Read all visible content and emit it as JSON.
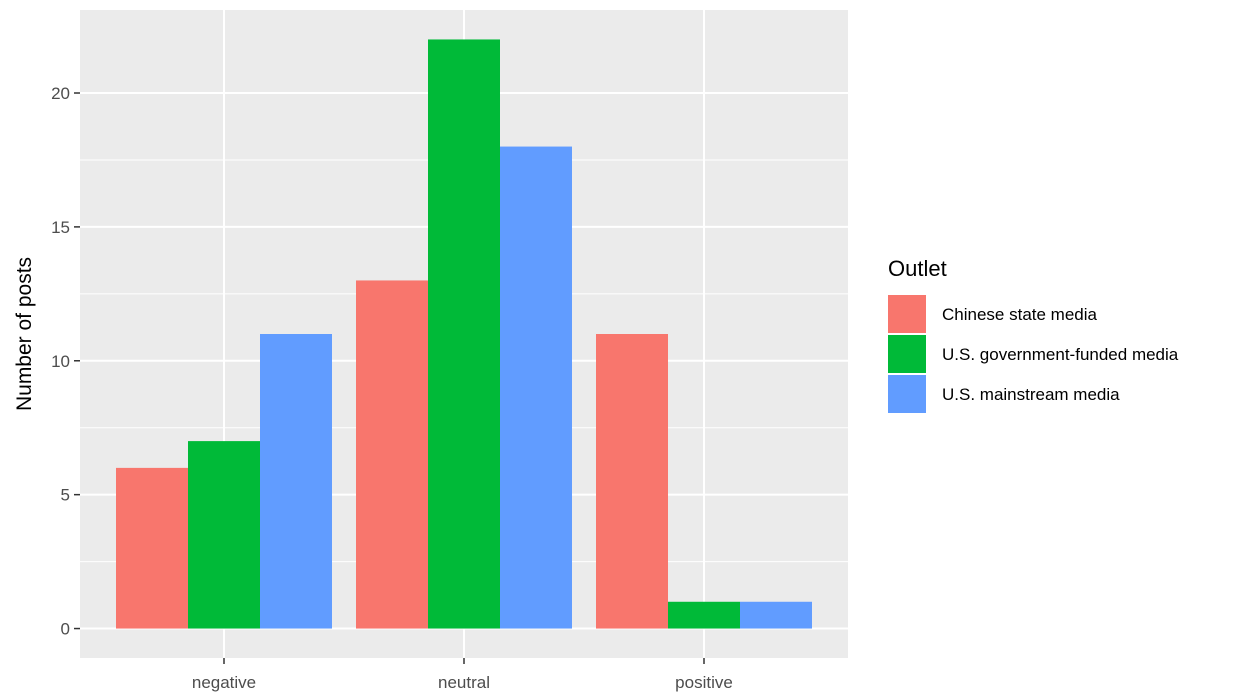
{
  "chart_data": {
    "type": "bar",
    "categories": [
      "negative",
      "neutral",
      "positive"
    ],
    "series": [
      {
        "name": "Chinese state media",
        "color": "#F8766D",
        "values": [
          6,
          13,
          11
        ]
      },
      {
        "name": "U.S. government-funded media",
        "color": "#00BA38",
        "values": [
          7,
          22,
          1
        ]
      },
      {
        "name": "U.S. mainstream media",
        "color": "#619CFF",
        "values": [
          11,
          18,
          1
        ]
      }
    ],
    "xlabel": "",
    "ylabel": "Number of posts",
    "ylim": [
      -1.1,
      23.1
    ],
    "yticks": [
      0,
      5,
      10,
      15,
      20
    ],
    "ytick_labels": [
      "0",
      "5",
      "10",
      "15",
      "20"
    ],
    "legend": {
      "title": "Outlet",
      "position": "right"
    },
    "grid": true,
    "panel_background": "#EBEBEB",
    "grid_color": "#FFFFFF"
  }
}
